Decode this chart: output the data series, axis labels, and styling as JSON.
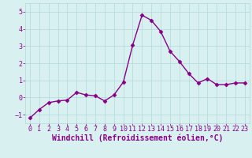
{
  "x": [
    0,
    1,
    2,
    3,
    4,
    5,
    6,
    7,
    8,
    9,
    10,
    11,
    12,
    13,
    14,
    15,
    16,
    17,
    18,
    19,
    20,
    21,
    22,
    23
  ],
  "y": [
    -1.2,
    -0.7,
    -0.3,
    -0.2,
    -0.15,
    0.3,
    0.15,
    0.1,
    -0.2,
    0.15,
    0.9,
    3.05,
    4.8,
    4.5,
    3.85,
    2.7,
    2.1,
    1.4,
    0.85,
    1.1,
    0.75,
    0.75,
    0.85,
    0.85
  ],
  "line_color": "#880088",
  "marker": "D",
  "marker_size": 2.5,
  "line_width": 1.0,
  "bg_color": "#d8f0f0",
  "grid_color": "#b0d8d8",
  "xlabel": "Windchill (Refroidissement éolien,°C)",
  "xlabel_color": "#880088",
  "xlabel_fontsize": 7,
  "ylim": [
    -1.5,
    5.5
  ],
  "xlim": [
    -0.5,
    23.5
  ],
  "yticks": [
    -1,
    0,
    1,
    2,
    3,
    4,
    5
  ],
  "xticks": [
    0,
    1,
    2,
    3,
    4,
    5,
    6,
    7,
    8,
    9,
    10,
    11,
    12,
    13,
    14,
    15,
    16,
    17,
    18,
    19,
    20,
    21,
    22,
    23
  ],
  "tick_fontsize": 6,
  "tick_color": "#880088"
}
